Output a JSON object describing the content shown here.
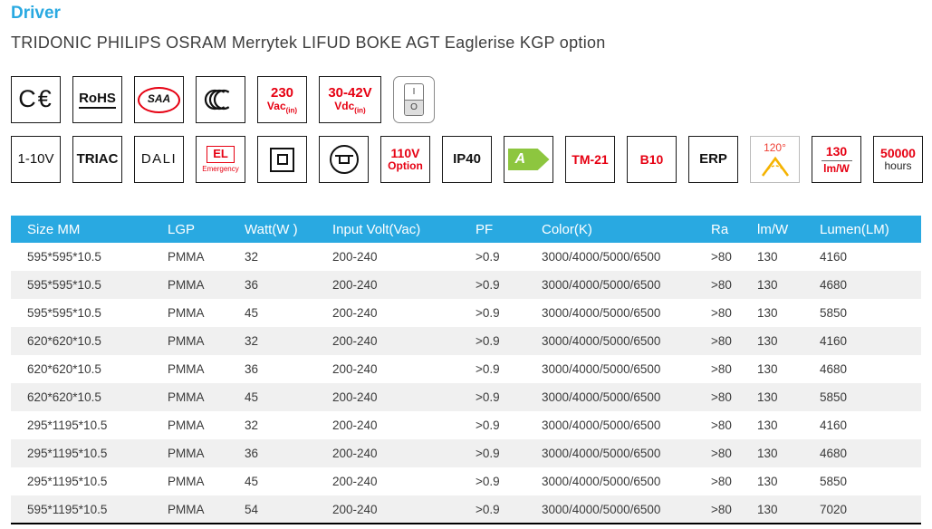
{
  "header": {
    "title": "Driver",
    "subtitle": "TRIDONIC PHILIPS OSRAM Merrytek LIFUD BOKE AGT Eaglerise KGP option"
  },
  "colors": {
    "accent_blue": "#29a9e1",
    "alert_red": "#e60012",
    "energy_green": "#8dc63f",
    "beam_gold": "#f5b301"
  },
  "icons": {
    "ce_mark": "ce-mark-icon",
    "saa_mark": "saa-mark-icon",
    "ccc_mark": "ccc-mark-icon",
    "rocker_switch": "rocker-switch-icon",
    "class_ii": "class-ii-icon",
    "recessed_mounting": "recessed-mounting-icon",
    "energy_arrow": "energy-class-arrow-icon",
    "beam_angle": "beam-angle-icon"
  },
  "badges": {
    "row1": {
      "ce": "C€",
      "rohs": "RoHS",
      "saa": "SAA",
      "vac": {
        "value": "230",
        "unit": "Vac",
        "sub": "(in)"
      },
      "vdc": {
        "value": "30-42V",
        "unit": "Vdc",
        "sub": "(in)"
      },
      "switch": {
        "on": "I",
        "off": "O"
      }
    },
    "row2": {
      "dim_0_10v": "1-10V",
      "triac": "TRIAC",
      "dali": "DALI",
      "emergency": {
        "label": "EL",
        "sub": "Emergency"
      },
      "option110": {
        "value": "110V",
        "sub": "Option"
      },
      "ip": "IP40",
      "energy_class": "A",
      "tm21": "TM-21",
      "b10": "B10",
      "erp": "ERP",
      "beam_angle": "120°",
      "efficacy": {
        "value": "130",
        "unit": "lm/W"
      },
      "lifetime": {
        "value": "50000",
        "unit": "hours"
      }
    }
  },
  "table": {
    "headers": [
      "Size MM",
      "LGP",
      "Watt(W )",
      "Input Volt(Vac)",
      "PF",
      "Color(K)",
      "Ra",
      "lm/W",
      "Lumen(LM)"
    ],
    "rows": [
      [
        "595*595*10.5",
        "PMMA",
        "32",
        "200-240",
        ">0.9",
        "3000/4000/5000/6500",
        ">80",
        "130",
        "4160"
      ],
      [
        "595*595*10.5",
        "PMMA",
        "36",
        "200-240",
        ">0.9",
        "3000/4000/5000/6500",
        ">80",
        "130",
        "4680"
      ],
      [
        "595*595*10.5",
        "PMMA",
        "45",
        "200-240",
        ">0.9",
        "3000/4000/5000/6500",
        ">80",
        "130",
        "5850"
      ],
      [
        "620*620*10.5",
        "PMMA",
        "32",
        "200-240",
        ">0.9",
        "3000/4000/5000/6500",
        ">80",
        "130",
        "4160"
      ],
      [
        "620*620*10.5",
        "PMMA",
        "36",
        "200-240",
        ">0.9",
        "3000/4000/5000/6500",
        ">80",
        "130",
        "4680"
      ],
      [
        "620*620*10.5",
        "PMMA",
        "45",
        "200-240",
        ">0.9",
        "3000/4000/5000/6500",
        ">80",
        "130",
        "5850"
      ],
      [
        "295*1195*10.5",
        "PMMA",
        "32",
        "200-240",
        ">0.9",
        "3000/4000/5000/6500",
        ">80",
        "130",
        "4160"
      ],
      [
        "295*1195*10.5",
        "PMMA",
        "36",
        "200-240",
        ">0.9",
        "3000/4000/5000/6500",
        ">80",
        "130",
        "4680"
      ],
      [
        "295*1195*10.5",
        "PMMA",
        "45",
        "200-240",
        ">0.9",
        "3000/4000/5000/6500",
        ">80",
        "130",
        "5850"
      ],
      [
        "595*1195*10.5",
        "PMMA",
        "54",
        "200-240",
        ">0.9",
        "3000/4000/5000/6500",
        ">80",
        "130",
        "7020"
      ]
    ]
  }
}
